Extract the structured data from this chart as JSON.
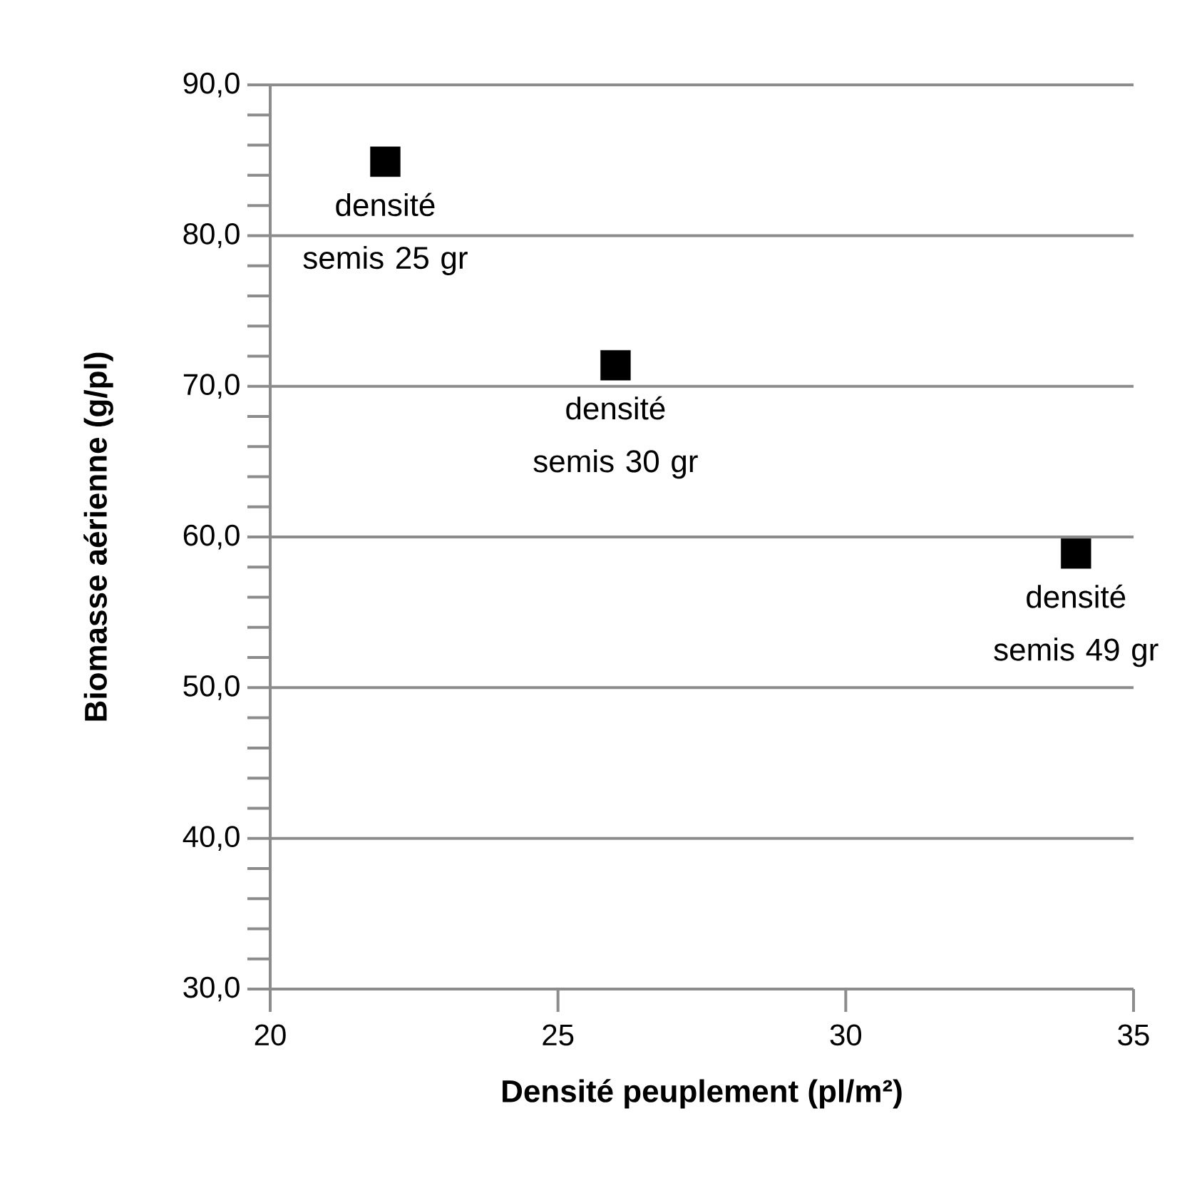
{
  "chart_data": {
    "type": "scatter",
    "xlabel": "Densité peuplement (pl/m²)",
    "ylabel": "Biomasse aérienne (g/pl)",
    "x": [
      22.0,
      26.0,
      34.0
    ],
    "series": [
      {
        "color": "#000000",
        "values": [
          84.9,
          71.4,
          58.9
        ]
      }
    ],
    "marker": "square",
    "xlim": [
      20,
      35
    ],
    "xticks": [
      20,
      25,
      30,
      35
    ],
    "ylim": [
      30,
      90
    ],
    "yticks": [
      {
        "value": 30,
        "label": "30,0"
      },
      {
        "value": 40,
        "label": "40,0"
      },
      {
        "value": 50,
        "label": "50,0"
      },
      {
        "value": 60,
        "label": "60,0"
      },
      {
        "value": 70,
        "label": "70,0"
      },
      {
        "value": 80,
        "label": "80,0"
      },
      {
        "value": 90,
        "label": "90,0"
      }
    ],
    "grid": "y",
    "annotations": [
      {
        "text": "densité semis 25 gr",
        "x": 22.0,
        "y": 84.9
      },
      {
        "text": "densité semis 30 gr",
        "x": 26.0,
        "y": 71.4
      },
      {
        "text": "densité semis 49 gr",
        "x": 34.0,
        "y": 58.9
      }
    ]
  }
}
